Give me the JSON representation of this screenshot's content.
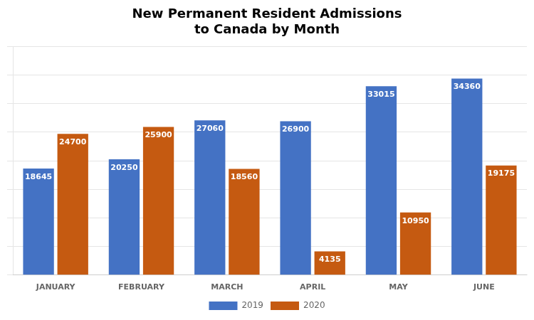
{
  "chart_data": {
    "type": "bar",
    "title": "New Permanent Resident Admissions\nto Canada by Month",
    "categories": [
      "JANUARY",
      "FEBRUARY",
      "MARCH",
      "APRIL",
      "MAY",
      "JUNE"
    ],
    "series": [
      {
        "name": "2019",
        "color": "#4472C4",
        "values": [
          18645,
          20250,
          27060,
          26900,
          33015,
          34360
        ]
      },
      {
        "name": "2020",
        "color": "#C55A11",
        "values": [
          24700,
          25900,
          18560,
          4135,
          10950,
          19175
        ]
      }
    ],
    "ylim": [
      0,
      40000
    ],
    "yticks": [
      0,
      5000,
      10000,
      15000,
      20000,
      25000,
      30000,
      35000,
      40000
    ],
    "grid": true,
    "legend": "bottom",
    "data_labels": true,
    "tick_labels": "x"
  }
}
